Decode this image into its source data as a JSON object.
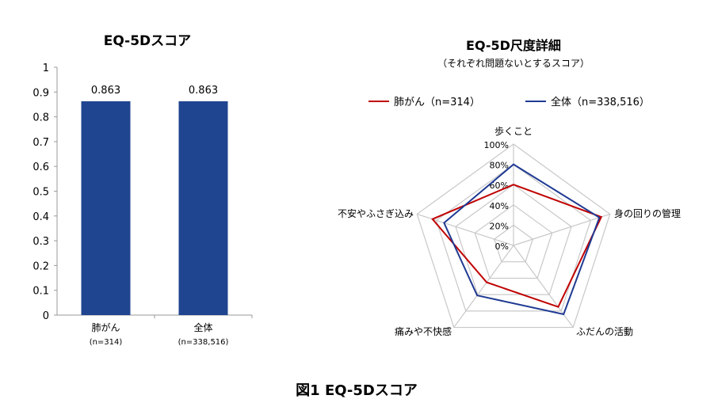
{
  "figure_caption": "図1 EQ-5Dスコア",
  "chart_data": [
    {
      "type": "bar",
      "title": "EQ-5Dスコア",
      "categories": [
        {
          "name": "肺がん",
          "sub": "(n=314)"
        },
        {
          "name": "全体",
          "sub": "(n=338,516)"
        }
      ],
      "values": [
        0.863,
        0.863
      ],
      "value_labels": [
        "0.863",
        "0.863"
      ],
      "ylim": [
        0,
        1
      ],
      "yticks": [
        "0",
        "0.1",
        "0.2",
        "0.3",
        "0.4",
        "0.5",
        "0.6",
        "0.7",
        "0.8",
        "0.9",
        "1"
      ],
      "color": "#1f4590",
      "xlabel": "",
      "ylabel": ""
    },
    {
      "type": "radar",
      "title": "EQ-5D尺度詳細",
      "subtitle": "（それぞれ問題ないとするスコア）",
      "axes": [
        "歩くこと",
        "身の回りの管理",
        "ふだんの活動",
        "痛みや不快感",
        "不安やふさぎ込み"
      ],
      "rticks": [
        "0%",
        "20%",
        "40%",
        "60%",
        "80%",
        "100%"
      ],
      "rlim": [
        0,
        100
      ],
      "legend_position": "top",
      "series": [
        {
          "name": "肺がん（n=314）",
          "color": "#c00000",
          "values": [
            60,
            91,
            75,
            45,
            84
          ]
        },
        {
          "name": "全体（n=338,516）",
          "color": "#1f3a93",
          "values": [
            80,
            89,
            84,
            61,
            72
          ]
        }
      ]
    }
  ]
}
